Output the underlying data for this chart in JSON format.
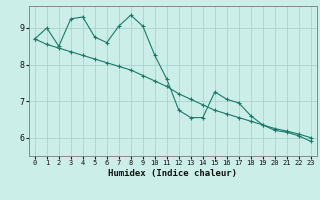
{
  "xlabel": "Humidex (Indice chaleur)",
  "bg_color": "#cceee8",
  "grid_color": "#aad4ce",
  "line_color": "#1a7a6a",
  "xlim": [
    -0.5,
    23.5
  ],
  "ylim": [
    5.5,
    9.6
  ],
  "yticks": [
    6,
    7,
    8,
    9
  ],
  "xticks": [
    0,
    1,
    2,
    3,
    4,
    5,
    6,
    7,
    8,
    9,
    10,
    11,
    12,
    13,
    14,
    15,
    16,
    17,
    18,
    19,
    20,
    21,
    22,
    23
  ],
  "jagged_x": [
    0,
    1,
    2,
    3,
    4,
    5,
    6,
    7,
    8,
    9,
    10,
    11,
    12,
    13,
    14,
    15,
    16,
    17,
    18,
    19,
    20,
    21,
    22,
    23
  ],
  "jagged_y": [
    8.7,
    9.0,
    8.5,
    9.25,
    9.3,
    8.75,
    8.6,
    9.05,
    9.35,
    9.05,
    8.25,
    7.6,
    6.75,
    6.55,
    6.55,
    7.25,
    7.05,
    6.95,
    6.6,
    6.35,
    6.2,
    6.15,
    6.05,
    5.9
  ],
  "smooth_x": [
    0,
    1,
    2,
    3,
    4,
    5,
    6,
    7,
    8,
    9,
    10,
    11,
    12,
    13,
    14,
    15,
    16,
    17,
    18,
    19,
    20,
    21,
    22,
    23
  ],
  "smooth_y": [
    8.7,
    8.55,
    8.45,
    8.35,
    8.25,
    8.15,
    8.05,
    7.95,
    7.85,
    7.7,
    7.55,
    7.4,
    7.2,
    7.05,
    6.9,
    6.75,
    6.65,
    6.55,
    6.45,
    6.35,
    6.25,
    6.18,
    6.1,
    6.0
  ]
}
